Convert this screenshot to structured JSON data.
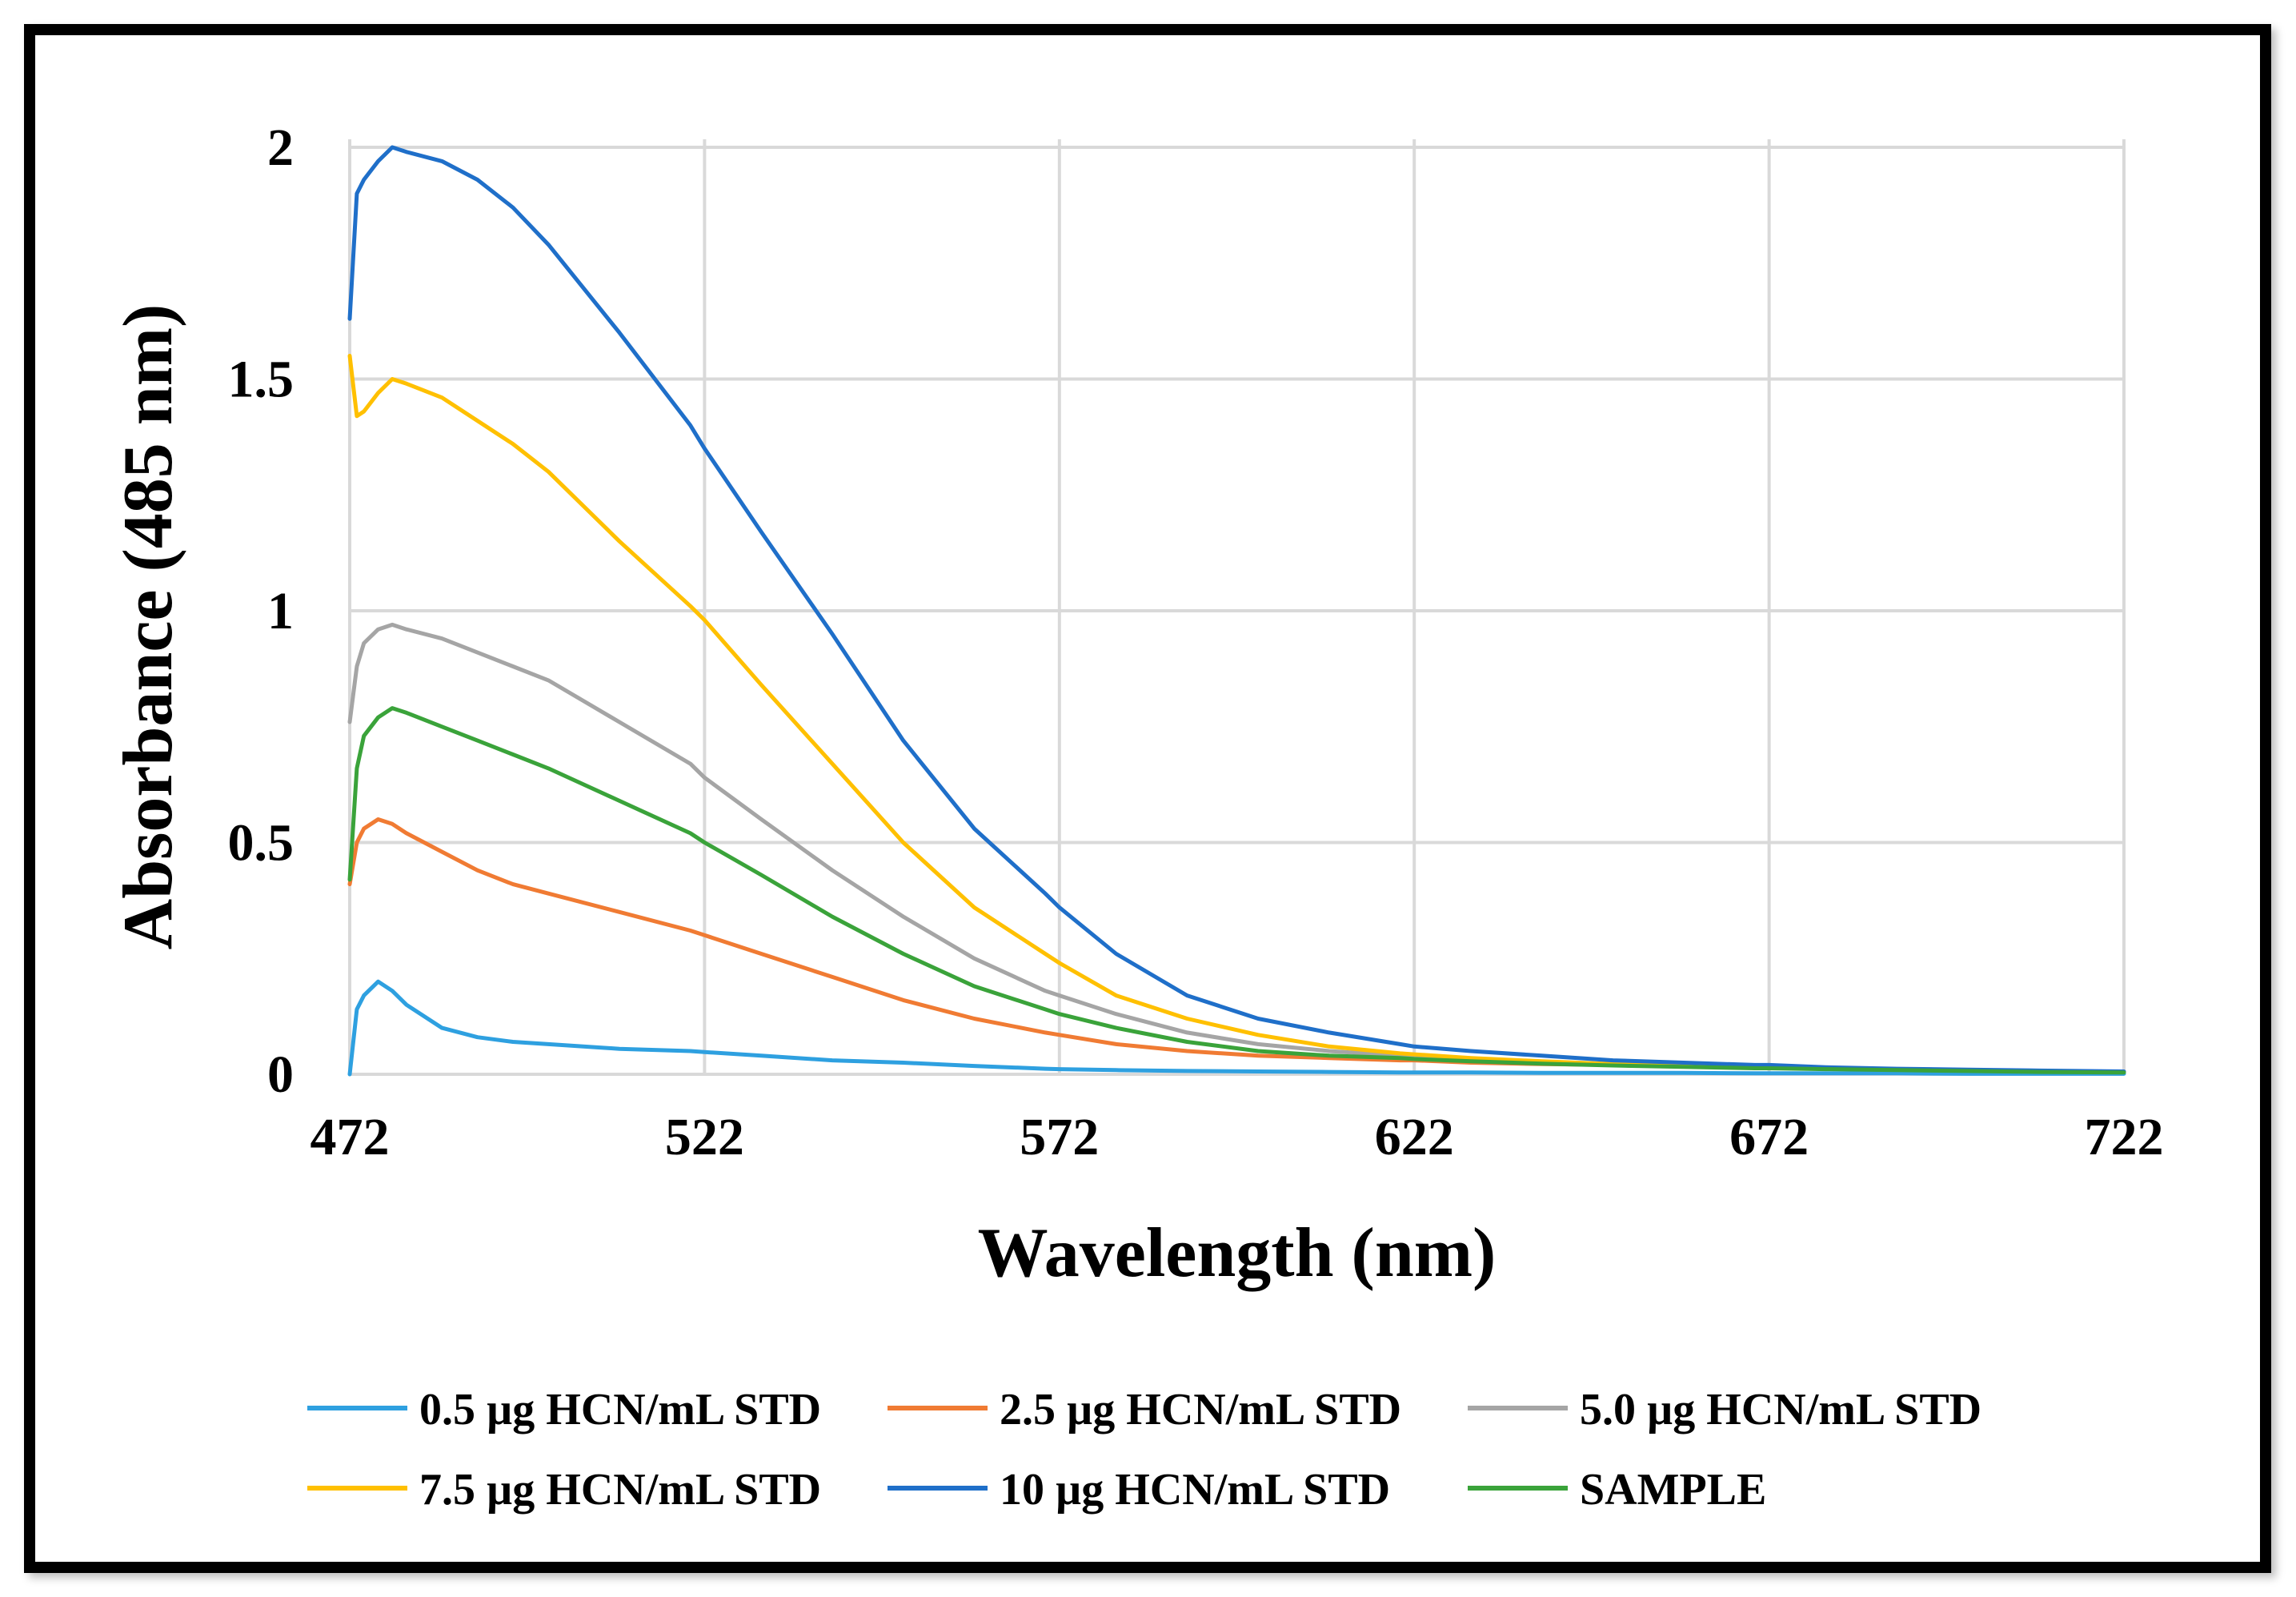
{
  "chart_data": {
    "type": "line",
    "title": "",
    "xlabel": "Wavelength (nm)",
    "ylabel": "Absorbance (485 nm)",
    "xlim": [
      472,
      722
    ],
    "ylim": [
      0,
      2
    ],
    "x_ticks": [
      472,
      522,
      572,
      622,
      672,
      722
    ],
    "y_ticks": [
      0,
      0.5,
      1,
      1.5,
      2
    ],
    "x_tick_labels": [
      "472",
      "522",
      "572",
      "622",
      "672",
      "722"
    ],
    "y_tick_labels": [
      "0",
      "0.5",
      "1",
      "1.5",
      "2"
    ],
    "grid": true,
    "legend_position": "bottom",
    "x": [
      472,
      473,
      474,
      476,
      478,
      480,
      485,
      490,
      495,
      500,
      510,
      520,
      522,
      530,
      540,
      550,
      560,
      570,
      572,
      580,
      590,
      600,
      610,
      620,
      622,
      630,
      640,
      650,
      660,
      670,
      672,
      680,
      690,
      700,
      710,
      722
    ],
    "series": [
      {
        "name": "0.5 µg HCN/mL STD",
        "color": "#2ea0e0",
        "values": [
          0.0,
          0.14,
          0.17,
          0.2,
          0.18,
          0.15,
          0.1,
          0.08,
          0.07,
          0.065,
          0.055,
          0.05,
          0.048,
          0.04,
          0.03,
          0.025,
          0.018,
          0.012,
          0.011,
          0.009,
          0.007,
          0.006,
          0.005,
          0.004,
          0.004,
          0.004,
          0.003,
          0.003,
          0.003,
          0.002,
          0.002,
          0.002,
          0.002,
          0.001,
          0.001,
          0.001
        ]
      },
      {
        "name": "2.5 µg HCN/mL STD",
        "color": "#f07b33",
        "values": [
          0.41,
          0.5,
          0.53,
          0.55,
          0.54,
          0.52,
          0.48,
          0.44,
          0.41,
          0.39,
          0.35,
          0.31,
          0.3,
          0.26,
          0.21,
          0.16,
          0.12,
          0.09,
          0.085,
          0.065,
          0.05,
          0.04,
          0.035,
          0.03,
          0.03,
          0.025,
          0.022,
          0.02,
          0.018,
          0.015,
          0.015,
          0.012,
          0.01,
          0.008,
          0.006,
          0.005
        ]
      },
      {
        "name": "5.0 µg HCN/mL STD",
        "color": "#a5a5a5",
        "values": [
          0.76,
          0.88,
          0.93,
          0.96,
          0.97,
          0.96,
          0.94,
          0.91,
          0.88,
          0.85,
          0.76,
          0.67,
          0.64,
          0.55,
          0.44,
          0.34,
          0.25,
          0.18,
          0.17,
          0.13,
          0.09,
          0.065,
          0.05,
          0.04,
          0.038,
          0.032,
          0.027,
          0.022,
          0.018,
          0.015,
          0.015,
          0.012,
          0.01,
          0.008,
          0.006,
          0.005
        ]
      },
      {
        "name": "7.5 µg HCN/mL STD",
        "color": "#ffc000",
        "values": [
          1.55,
          1.42,
          1.43,
          1.47,
          1.5,
          1.49,
          1.46,
          1.41,
          1.36,
          1.3,
          1.15,
          1.01,
          0.98,
          0.84,
          0.67,
          0.5,
          0.36,
          0.26,
          0.24,
          0.17,
          0.12,
          0.085,
          0.06,
          0.045,
          0.043,
          0.035,
          0.028,
          0.022,
          0.018,
          0.015,
          0.014,
          0.012,
          0.01,
          0.008,
          0.006,
          0.005
        ]
      },
      {
        "name": "10 µg HCN/mL STD",
        "color": "#1f6fc9",
        "values": [
          1.63,
          1.9,
          1.93,
          1.97,
          2.0,
          1.99,
          1.97,
          1.93,
          1.87,
          1.79,
          1.6,
          1.4,
          1.35,
          1.17,
          0.95,
          0.72,
          0.53,
          0.39,
          0.36,
          0.26,
          0.17,
          0.12,
          0.09,
          0.065,
          0.06,
          0.05,
          0.04,
          0.03,
          0.025,
          0.02,
          0.02,
          0.015,
          0.012,
          0.01,
          0.008,
          0.006
        ]
      },
      {
        "name": "SAMPLE",
        "color": "#3aa33a",
        "values": [
          0.42,
          0.66,
          0.73,
          0.77,
          0.79,
          0.78,
          0.75,
          0.72,
          0.69,
          0.66,
          0.59,
          0.52,
          0.5,
          0.43,
          0.34,
          0.26,
          0.19,
          0.14,
          0.13,
          0.1,
          0.07,
          0.05,
          0.04,
          0.035,
          0.033,
          0.028,
          0.023,
          0.019,
          0.016,
          0.013,
          0.013,
          0.011,
          0.009,
          0.007,
          0.005,
          0.004
        ]
      }
    ]
  }
}
